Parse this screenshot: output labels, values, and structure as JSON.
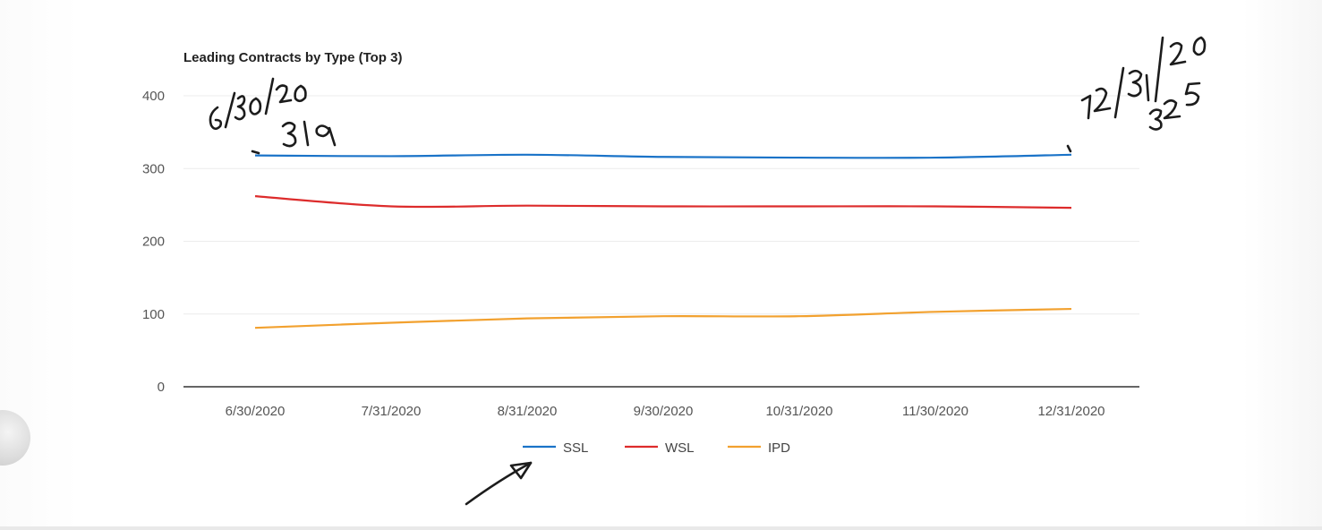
{
  "chart_data": {
    "type": "line",
    "title": "Leading Contracts by Type (Top 3)",
    "categories": [
      "6/30/2020",
      "7/31/2020",
      "8/31/2020",
      "9/30/2020",
      "10/31/2020",
      "11/30/2020",
      "12/31/2020"
    ],
    "yticks": [
      "400",
      "300",
      "200",
      "100",
      "0"
    ],
    "ylim": [
      0,
      400
    ],
    "grid": true,
    "legend_position": "bottom",
    "series": [
      {
        "name": "SSL",
        "color": "#1a73c8",
        "values": [
          318,
          317,
          319,
          316,
          315,
          315,
          319
        ]
      },
      {
        "name": "WSL",
        "color": "#dd2c2c",
        "values": [
          262,
          248,
          249,
          248,
          248,
          248,
          246
        ]
      },
      {
        "name": "IPD",
        "color": "#f2a12f",
        "values": [
          81,
          88,
          94,
          97,
          97,
          103,
          107
        ]
      }
    ],
    "annotations": [
      "6/30/20",
      "319",
      "12/31/20",
      "325"
    ]
  }
}
